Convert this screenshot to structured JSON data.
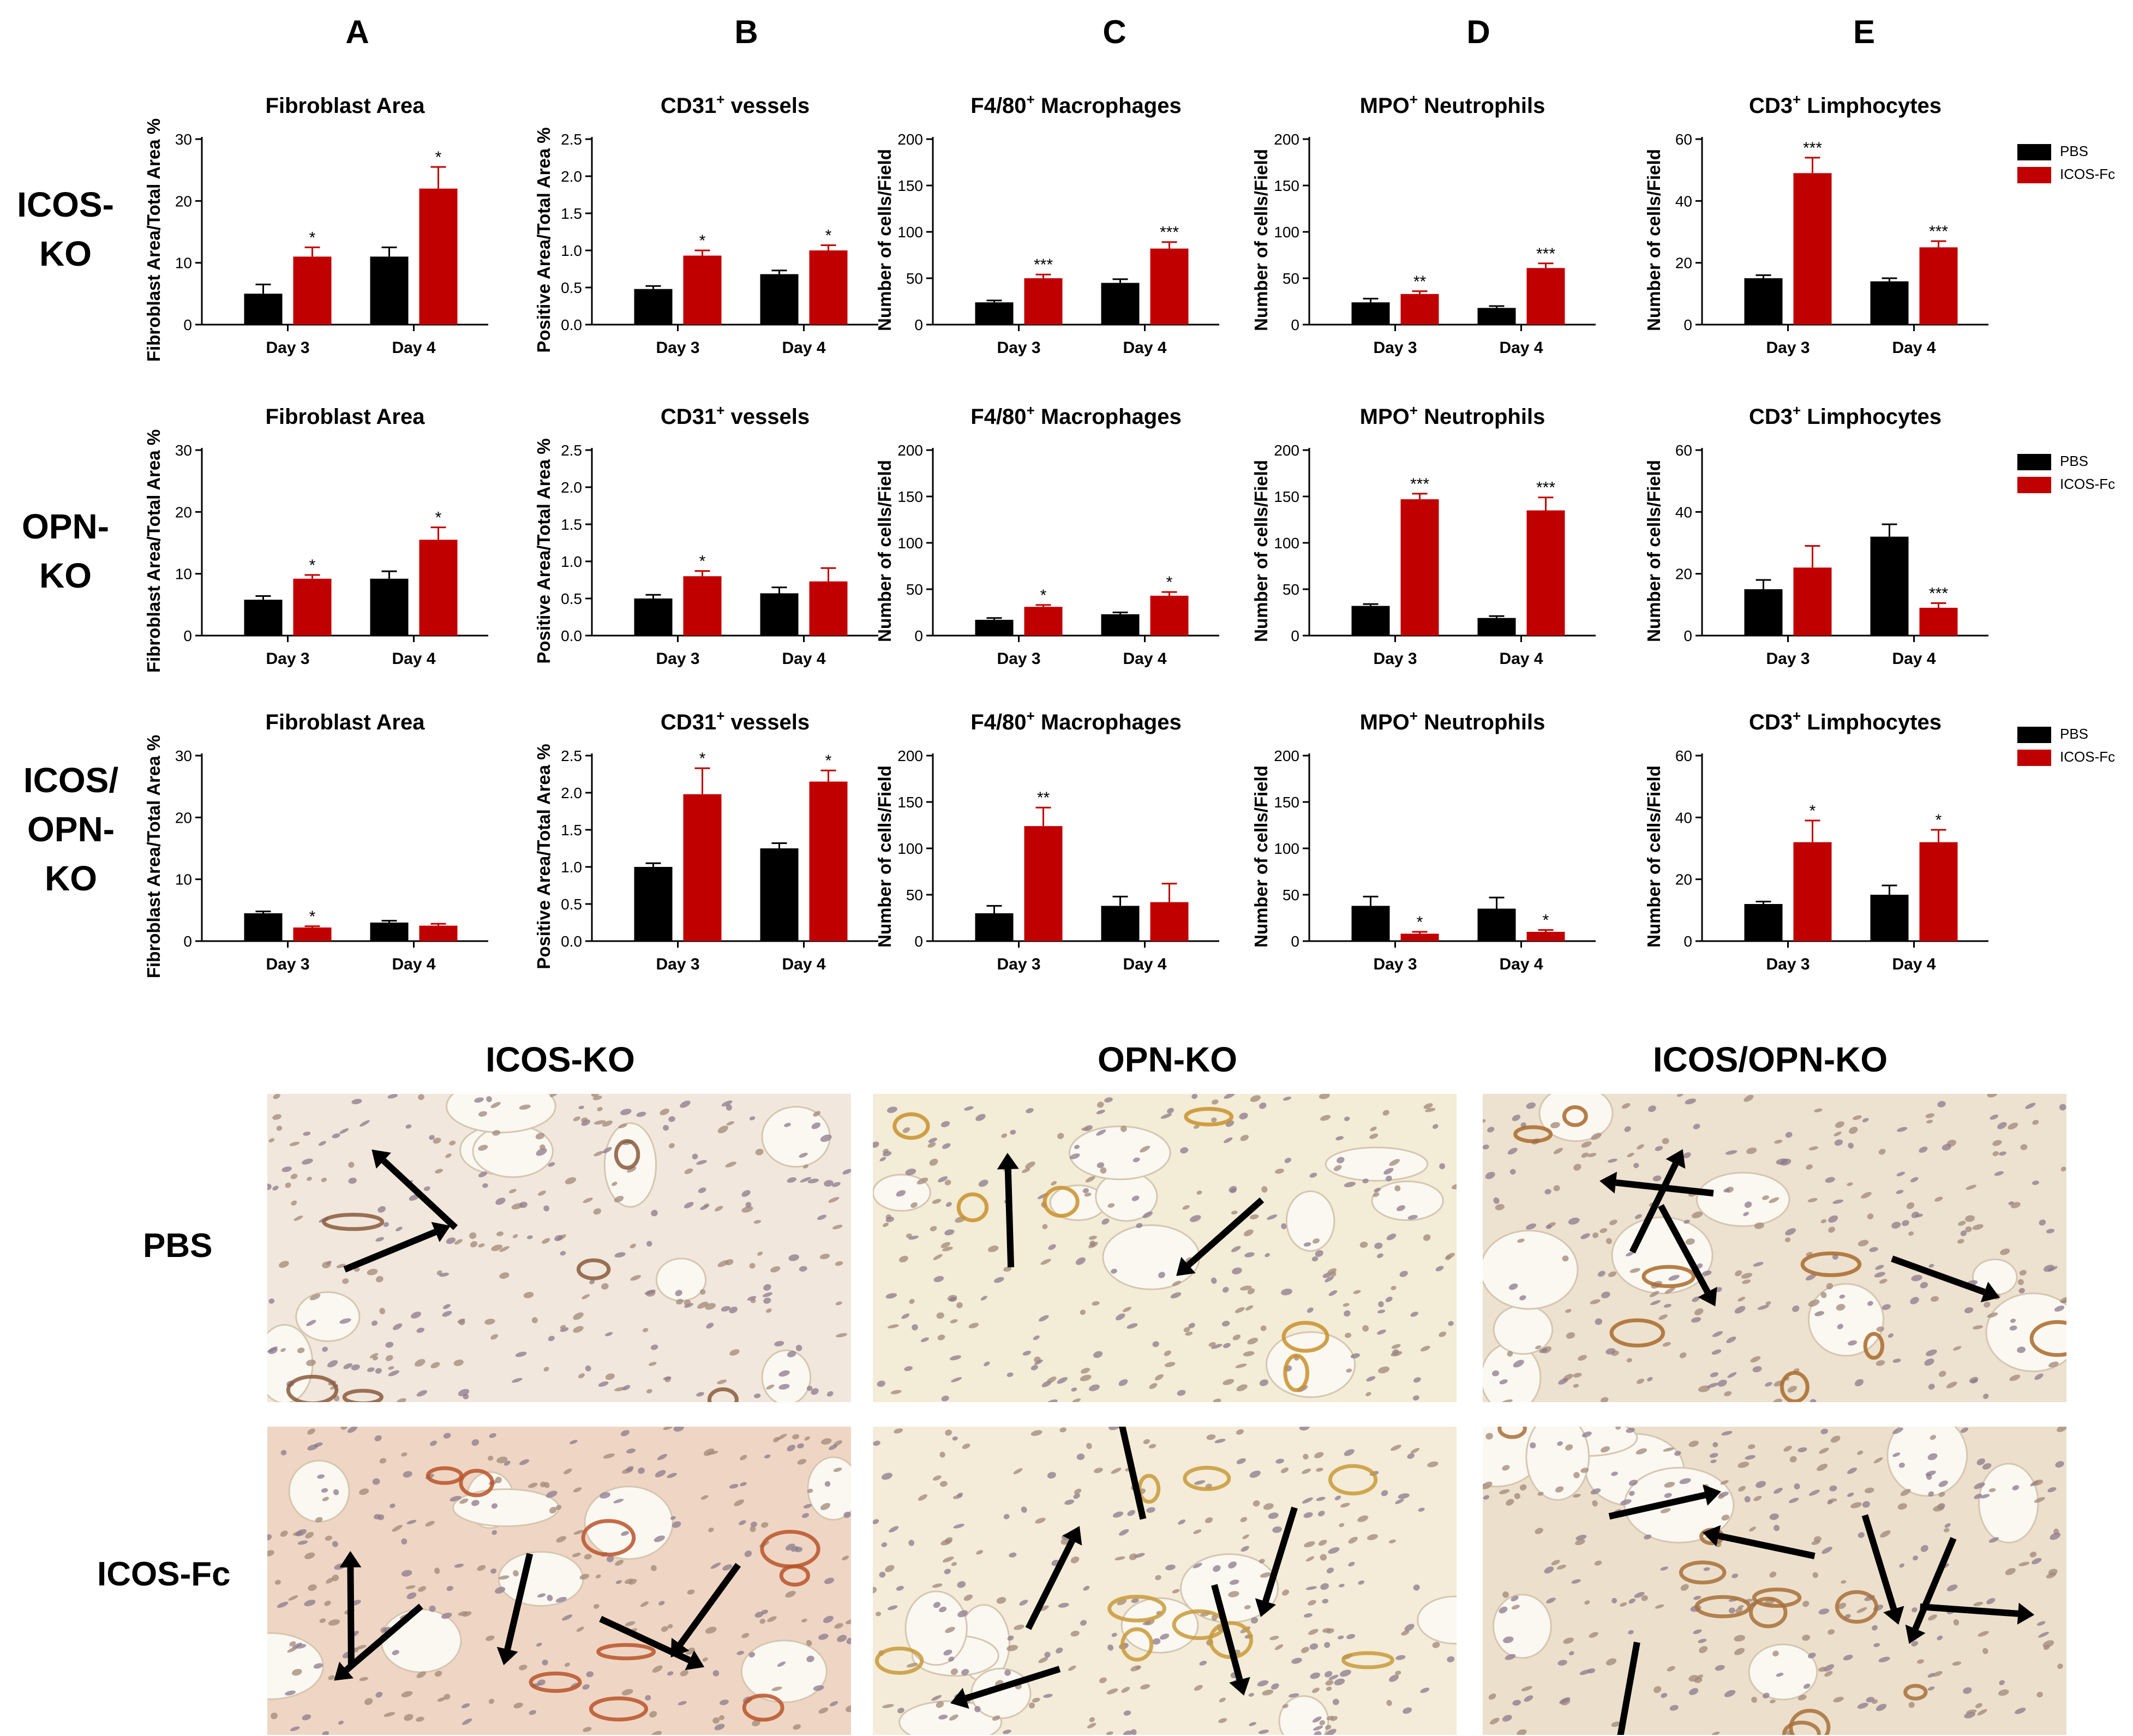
{
  "column_letters": [
    "A",
    "B",
    "C",
    "D",
    "E"
  ],
  "row_labels": [
    {
      "lines": [
        "ICOS-",
        "KO"
      ]
    },
    {
      "lines": [
        "OPN-",
        "KO"
      ]
    },
    {
      "lines": [
        "ICOS/",
        "OPN-",
        "KO"
      ]
    }
  ],
  "legend": {
    "entries": [
      {
        "name": "PBS",
        "color": "#000000"
      },
      {
        "name": "ICOS-Fc",
        "color": "#c00000"
      }
    ]
  },
  "colors": {
    "pbs": "#000000",
    "icosfc": "#c00000"
  },
  "chart_data": [
    {
      "type": "bar",
      "title": "Fibroblast Area",
      "title_sup": "",
      "title_rest": "",
      "ylabel": "Fibroblast Area/Total Area %",
      "categories": [
        "Day 3",
        "Day 4"
      ],
      "yticks": [
        "0",
        "10",
        "20",
        "30"
      ],
      "ylim": [
        0,
        30
      ],
      "series": [
        {
          "name": "PBS",
          "values": [
            5,
            11
          ],
          "errors": [
            1.5,
            1.5
          ],
          "sig": [
            "",
            ""
          ]
        },
        {
          "name": "ICOS-Fc",
          "values": [
            11,
            22
          ],
          "errors": [
            1.5,
            3.5
          ],
          "sig": [
            "*",
            "*"
          ]
        }
      ]
    },
    {
      "type": "bar",
      "title": "CD31",
      "title_sup": "+",
      "title_rest": " vessels",
      "ylabel": "Positive Area/Total Area %",
      "categories": [
        "Day 3",
        "Day 4"
      ],
      "yticks": [
        "0.0",
        "0.5",
        "1.0",
        "1.5",
        "2.0",
        "2.5"
      ],
      "ylim": [
        0,
        2.5
      ],
      "series": [
        {
          "name": "PBS",
          "values": [
            0.48,
            0.68
          ],
          "errors": [
            0.04,
            0.05
          ],
          "sig": [
            "",
            ""
          ]
        },
        {
          "name": "ICOS-Fc",
          "values": [
            0.93,
            1.0
          ],
          "errors": [
            0.07,
            0.07
          ],
          "sig": [
            "*",
            "*"
          ]
        }
      ]
    },
    {
      "type": "bar",
      "title": "F4/80",
      "title_sup": "+",
      "title_rest": " Macrophages",
      "ylabel": "Number of cells/Field",
      "categories": [
        "Day 3",
        "Day 4"
      ],
      "yticks": [
        "0",
        "50",
        "100",
        "150",
        "200"
      ],
      "ylim": [
        0,
        200
      ],
      "series": [
        {
          "name": "PBS",
          "values": [
            24,
            45
          ],
          "errors": [
            2,
            4
          ],
          "sig": [
            "",
            ""
          ]
        },
        {
          "name": "ICOS-Fc",
          "values": [
            50,
            82
          ],
          "errors": [
            4,
            7
          ],
          "sig": [
            "***",
            "***"
          ]
        }
      ]
    },
    {
      "type": "bar",
      "title": "MPO",
      "title_sup": "+",
      "title_rest": " Neutrophils",
      "ylabel": "Number of cells/Field",
      "categories": [
        "Day 3",
        "Day 4"
      ],
      "yticks": [
        "0",
        "50",
        "100",
        "150",
        "200"
      ],
      "ylim": [
        0,
        200
      ],
      "series": [
        {
          "name": "PBS",
          "values": [
            24,
            18
          ],
          "errors": [
            4,
            2
          ],
          "sig": [
            "",
            ""
          ]
        },
        {
          "name": "ICOS-Fc",
          "values": [
            33,
            61
          ],
          "errors": [
            3,
            5
          ],
          "sig": [
            "**",
            "***"
          ]
        }
      ]
    },
    {
      "type": "bar",
      "title": "CD3",
      "title_sup": "+",
      "title_rest": " Limphocytes",
      "ylabel": "Number of cells/Field",
      "categories": [
        "Day 3",
        "Day 4"
      ],
      "yticks": [
        "0",
        "20",
        "40",
        "60"
      ],
      "ylim": [
        0,
        60
      ],
      "series": [
        {
          "name": "PBS",
          "values": [
            15,
            14
          ],
          "errors": [
            1,
            1
          ],
          "sig": [
            "",
            ""
          ]
        },
        {
          "name": "ICOS-Fc",
          "values": [
            49,
            25
          ],
          "errors": [
            5,
            2
          ],
          "sig": [
            "***",
            "***"
          ]
        }
      ]
    },
    {
      "type": "bar",
      "title": "Fibroblast  Area",
      "title_sup": "",
      "title_rest": "",
      "ylabel": "Fibroblast Area/Total Area %",
      "categories": [
        "Day 3",
        "Day 4"
      ],
      "yticks": [
        "0",
        "10",
        "20",
        "30"
      ],
      "ylim": [
        0,
        30
      ],
      "series": [
        {
          "name": "PBS",
          "values": [
            5.8,
            9.2
          ],
          "errors": [
            0.6,
            1.2
          ],
          "sig": [
            "",
            ""
          ]
        },
        {
          "name": "ICOS-Fc",
          "values": [
            9.2,
            15.5
          ],
          "errors": [
            0.6,
            2
          ],
          "sig": [
            "*",
            "*"
          ]
        }
      ]
    },
    {
      "type": "bar",
      "title": "CD31",
      "title_sup": "+",
      "title_rest": " vessels",
      "ylabel": "Positive Area/Total Area %",
      "categories": [
        "Day 3",
        "Day 4"
      ],
      "yticks": [
        "0.0",
        "0.5",
        "1.0",
        "1.5",
        "2.0",
        "2.5"
      ],
      "ylim": [
        0,
        2.5
      ],
      "series": [
        {
          "name": "PBS",
          "values": [
            0.5,
            0.57
          ],
          "errors": [
            0.05,
            0.08
          ],
          "sig": [
            "",
            ""
          ]
        },
        {
          "name": "ICOS-Fc",
          "values": [
            0.8,
            0.73
          ],
          "errors": [
            0.07,
            0.18
          ],
          "sig": [
            "*",
            ""
          ]
        }
      ]
    },
    {
      "type": "bar",
      "title": "F4/80",
      "title_sup": "+",
      "title_rest": " Macrophages",
      "ylabel": "Number of cells/Field",
      "categories": [
        "Day 3",
        "Day 4"
      ],
      "yticks": [
        "0",
        "50",
        "100",
        "150",
        "200"
      ],
      "ylim": [
        0,
        200
      ],
      "series": [
        {
          "name": "PBS",
          "values": [
            17,
            23
          ],
          "errors": [
            2,
            2
          ],
          "sig": [
            "",
            ""
          ]
        },
        {
          "name": "ICOS-Fc",
          "values": [
            31,
            43
          ],
          "errors": [
            2,
            4
          ],
          "sig": [
            "*",
            "*"
          ]
        }
      ]
    },
    {
      "type": "bar",
      "title": "MPO",
      "title_sup": "+",
      "title_rest": " Neutrophils",
      "ylabel": "Number of cells/Field",
      "categories": [
        "Day 3",
        "Day 4"
      ],
      "yticks": [
        "0",
        "50",
        "100",
        "150",
        "200"
      ],
      "ylim": [
        0,
        200
      ],
      "series": [
        {
          "name": "PBS",
          "values": [
            32,
            19
          ],
          "errors": [
            2,
            2
          ],
          "sig": [
            "",
            ""
          ]
        },
        {
          "name": "ICOS-Fc",
          "values": [
            147,
            135
          ],
          "errors": [
            6,
            14
          ],
          "sig": [
            "***",
            "***"
          ]
        }
      ]
    },
    {
      "type": "bar",
      "title": "CD3",
      "title_sup": "+",
      "title_rest": " Limphocytes",
      "ylabel": "Number of cells/Field",
      "categories": [
        "Day 3",
        "Day 4"
      ],
      "yticks": [
        "0",
        "20",
        "40",
        "60"
      ],
      "ylim": [
        0,
        60
      ],
      "series": [
        {
          "name": "PBS",
          "values": [
            15,
            32
          ],
          "errors": [
            3,
            4
          ],
          "sig": [
            "",
            ""
          ]
        },
        {
          "name": "ICOS-Fc",
          "values": [
            22,
            9
          ],
          "errors": [
            7,
            1.5
          ],
          "sig": [
            "",
            "***"
          ]
        }
      ]
    },
    {
      "type": "bar",
      "title": "Fibroblast Area",
      "title_sup": "",
      "title_rest": "",
      "ylabel": "Fibroblast Area/Total Area %",
      "categories": [
        "Day 3",
        "Day 4"
      ],
      "yticks": [
        "0",
        "10",
        "20",
        "30"
      ],
      "ylim": [
        0,
        30
      ],
      "series": [
        {
          "name": "PBS",
          "values": [
            4.5,
            3
          ],
          "errors": [
            0.3,
            0.3
          ],
          "sig": [
            "",
            ""
          ]
        },
        {
          "name": "ICOS-Fc",
          "values": [
            2.2,
            2.5
          ],
          "errors": [
            0.2,
            0.3
          ],
          "sig": [
            "*",
            ""
          ]
        }
      ]
    },
    {
      "type": "bar",
      "title": "CD31",
      "title_sup": "+",
      "title_rest": " vessels",
      "ylabel": "Positive Area/Total Area %",
      "categories": [
        "Day 3",
        "Day 4"
      ],
      "yticks": [
        "0.0",
        "0.5",
        "1.0",
        "1.5",
        "2.0",
        "2.5"
      ],
      "ylim": [
        0,
        2.5
      ],
      "series": [
        {
          "name": "PBS",
          "values": [
            1.0,
            1.25
          ],
          "errors": [
            0.05,
            0.07
          ],
          "sig": [
            "",
            ""
          ]
        },
        {
          "name": "ICOS-Fc",
          "values": [
            1.98,
            2.15
          ],
          "errors": [
            0.35,
            0.15
          ],
          "sig": [
            "*",
            "*"
          ]
        }
      ]
    },
    {
      "type": "bar",
      "title": "F4/80",
      "title_sup": "+",
      "title_rest": " Macrophages",
      "ylabel": "Number of cells/Field",
      "categories": [
        "Day 3",
        "Day 4"
      ],
      "yticks": [
        "0",
        "50",
        "100",
        "150",
        "200"
      ],
      "ylim": [
        0,
        200
      ],
      "series": [
        {
          "name": "PBS",
          "values": [
            30,
            38
          ],
          "errors": [
            8,
            10
          ],
          "sig": [
            "",
            ""
          ]
        },
        {
          "name": "ICOS-Fc",
          "values": [
            124,
            42
          ],
          "errors": [
            20,
            20
          ],
          "sig": [
            "**",
            ""
          ]
        }
      ]
    },
    {
      "type": "bar",
      "title": "MPO",
      "title_sup": "+",
      "title_rest": " Neutrophils",
      "ylabel": "Number of cells/Field",
      "categories": [
        "Day 3",
        "Day 4"
      ],
      "yticks": [
        "0",
        "50",
        "100",
        "150",
        "200"
      ],
      "ylim": [
        0,
        200
      ],
      "series": [
        {
          "name": "PBS",
          "values": [
            38,
            35
          ],
          "errors": [
            10,
            12
          ],
          "sig": [
            "",
            ""
          ]
        },
        {
          "name": "ICOS-Fc",
          "values": [
            8,
            10
          ],
          "errors": [
            2,
            2
          ],
          "sig": [
            "*",
            "*"
          ]
        }
      ]
    },
    {
      "type": "bar",
      "title": "CD3",
      "title_sup": "+",
      "title_rest": " Limphocytes",
      "ylabel": "Number of cells/Field",
      "categories": [
        "Day 3",
        "Day 4"
      ],
      "yticks": [
        "0",
        "20",
        "40",
        "60"
      ],
      "ylim": [
        0,
        60
      ],
      "series": [
        {
          "name": "PBS",
          "values": [
            12,
            15
          ],
          "errors": [
            0.8,
            3
          ],
          "sig": [
            "",
            ""
          ]
        },
        {
          "name": "ICOS-Fc",
          "values": [
            32,
            32
          ],
          "errors": [
            7,
            4
          ],
          "sig": [
            "*",
            "*"
          ]
        }
      ]
    }
  ],
  "micrographs": {
    "column_titles": [
      "ICOS-KO",
      "OPN-KO",
      "ICOS/OPN-KO"
    ],
    "row_titles": [
      "PBS",
      "ICOS-Fc"
    ],
    "panels": [
      {
        "row": "PBS",
        "column": "ICOS-KO",
        "stain": "#8a5a3c",
        "background": "#f1e7dc",
        "arrows": 2
      },
      {
        "row": "PBS",
        "column": "OPN-KO",
        "stain": "#c8902c",
        "background": "#f3ecd6",
        "arrows": 2
      },
      {
        "row": "PBS",
        "column": "ICOS/OPN-KO",
        "stain": "#a86a2a",
        "background": "#ede1cf",
        "arrows": 4
      },
      {
        "row": "ICOS-Fc",
        "column": "ICOS-KO",
        "stain": "#b9532a",
        "background": "#efd6c4",
        "arrows": 5
      },
      {
        "row": "ICOS-Fc",
        "column": "OPN-KO",
        "stain": "#c89a3a",
        "background": "#f4ecd8",
        "arrows": 5
      },
      {
        "row": "ICOS-Fc",
        "column": "ICOS/OPN-KO",
        "stain": "#a8703a",
        "background": "#ece0cc",
        "arrows": 6
      }
    ]
  }
}
